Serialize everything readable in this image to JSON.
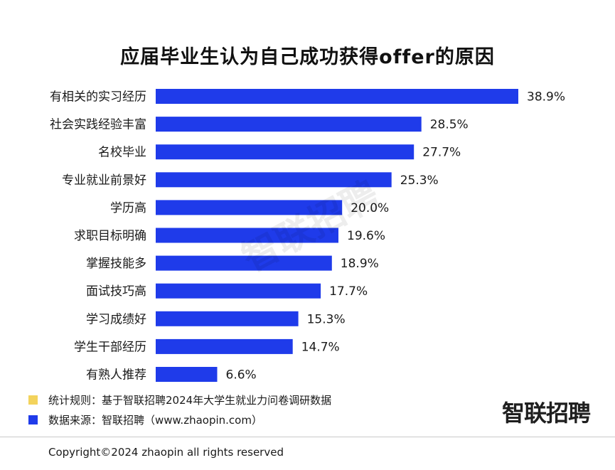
{
  "title": "应届毕业生认为自己成功获得offer的原因",
  "watermark": "智联招聘",
  "colors": {
    "bar": "#1f3bea",
    "note_rule": "#f3d35c",
    "note_source": "#1f3bea"
  },
  "chart_data": {
    "type": "bar",
    "orientation": "horizontal",
    "title": "应届毕业生认为自己成功获得offer的原因",
    "xlabel": "",
    "ylabel": "",
    "unit": "%",
    "xlim": [
      0,
      38.9
    ],
    "grid": false,
    "categories": [
      "有相关的实习经历",
      "社会实践经验丰富",
      "名校毕业",
      "专业就业前景好",
      "学历高",
      "求职目标明确",
      "掌握技能多",
      "面试技巧高",
      "学习成绩好",
      "学生干部经历",
      "有熟人推荐"
    ],
    "values": [
      38.9,
      28.5,
      27.7,
      25.3,
      20.0,
      19.6,
      18.9,
      17.7,
      15.3,
      14.7,
      6.6
    ],
    "value_labels": [
      "38.9%",
      "28.5%",
      "27.7%",
      "25.3%",
      "20.0%",
      "19.6%",
      "18.9%",
      "17.7%",
      "15.3%",
      "14.7%",
      "6.6%"
    ]
  },
  "notes": {
    "rule": "统计规则：基于智联招聘2024年大学生就业力问卷调研数据",
    "source": "数据来源：智联招聘（www.zhaopin.com）"
  },
  "brand": "智联招聘",
  "copyright": "Copyright©2024 zhaopin all rights reserved"
}
